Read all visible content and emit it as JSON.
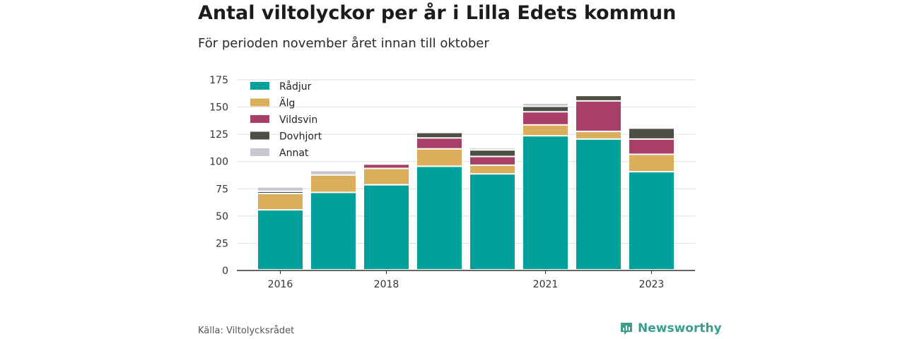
{
  "title": "Antal viltolyckor per år i Lilla Edets kommun",
  "subtitle": "För perioden november året innan till oktober",
  "source": "Källa: Viltolycksrådet",
  "brand": "Newsworthy",
  "chart_data": {
    "type": "bar",
    "stacked": true,
    "categories": [
      "2016",
      "2017",
      "2018",
      "2019",
      "2020",
      "2021",
      "2022",
      "2023"
    ],
    "x_tick_labels": [
      "2016",
      "",
      "2018",
      "",
      "",
      "2021",
      "",
      "2023"
    ],
    "series": [
      {
        "name": "Rådjur",
        "color": "#00a19a",
        "values": [
          55,
          71,
          78,
          95,
          88,
          123,
          120,
          90
        ]
      },
      {
        "name": "Älg",
        "color": "#dbae5c",
        "values": [
          15,
          16,
          15,
          16,
          8,
          10,
          7,
          16
        ]
      },
      {
        "name": "Vildsvin",
        "color": "#a83f67",
        "values": [
          0,
          0,
          4,
          10,
          8,
          12,
          28,
          14
        ]
      },
      {
        "name": "Dovhjort",
        "color": "#4c4f41",
        "values": [
          2,
          0,
          0,
          5,
          6,
          5,
          5,
          10
        ]
      },
      {
        "name": "Annat",
        "color": "#c8c7d1",
        "values": [
          4,
          4,
          0,
          0,
          2,
          3,
          0,
          0
        ]
      }
    ],
    "ylim": [
      0,
      175
    ],
    "yticks": [
      0,
      25,
      50,
      75,
      100,
      125,
      150,
      175
    ],
    "grid": true,
    "legend_position": "top-left"
  }
}
